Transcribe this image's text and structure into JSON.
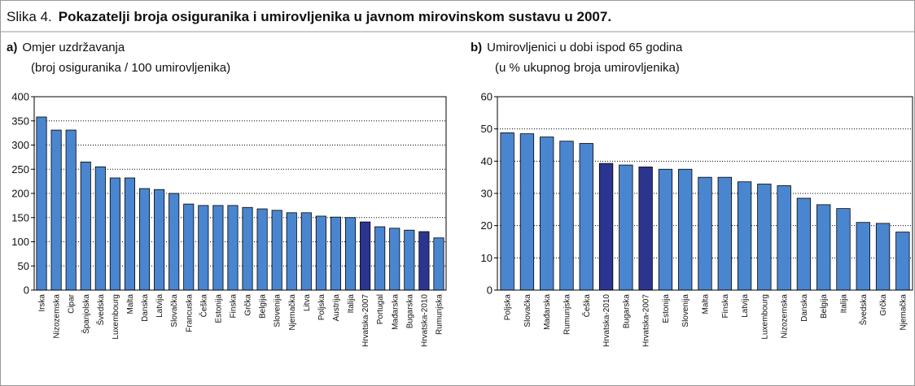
{
  "figure": {
    "label": "Slika 4.",
    "title": "Pokazatelji broja osiguranika i umirovljenika u javnom mirovinskom sustavu u 2007."
  },
  "chart_data": [
    {
      "type": "bar",
      "label": "a)",
      "title": "Omjer uzdržavanja",
      "subtitle": "(broj osiguranika / 100 umirovljenika)",
      "categories": [
        "Irska",
        "Nizozemska",
        "Cipar",
        "Španjolska",
        "Švedska",
        "Luxembourg",
        "Malta",
        "Danska",
        "Latvija",
        "Slovačka",
        "Francuska",
        "Češka",
        "Estonija",
        "Finska",
        "Grčka",
        "Belgija",
        "Slovenija",
        "Njemačka",
        "Litva",
        "Poljska",
        "Austrija",
        "Italija",
        "Hrvatska-2007",
        "Portugal",
        "Mađarska",
        "Bugarska",
        "Hrvatska-2010",
        "Rumunjska"
      ],
      "values": [
        358,
        331,
        331,
        265,
        255,
        232,
        232,
        210,
        208,
        200,
        178,
        175,
        175,
        175,
        171,
        168,
        165,
        160,
        160,
        153,
        151,
        150,
        141,
        131,
        128,
        124,
        121,
        108
      ],
      "colors": [
        "#4a86d0",
        "#4a86d0",
        "#4a86d0",
        "#4a86d0",
        "#4a86d0",
        "#4a86d0",
        "#4a86d0",
        "#4a86d0",
        "#4a86d0",
        "#4a86d0",
        "#4a86d0",
        "#4a86d0",
        "#4a86d0",
        "#4a86d0",
        "#4a86d0",
        "#4a86d0",
        "#4a86d0",
        "#4a86d0",
        "#4a86d0",
        "#4a86d0",
        "#4a86d0",
        "#4a86d0",
        "#2b3590",
        "#4a86d0",
        "#4a86d0",
        "#4a86d0",
        "#2b3590",
        "#4a86d0"
      ],
      "ylim": [
        0,
        400
      ],
      "yticks": [
        0,
        50,
        100,
        150,
        200,
        250,
        300,
        350,
        400
      ],
      "grid": true
    },
    {
      "type": "bar",
      "label": "b)",
      "title": "Umirovljenici u dobi ispod 65 godina",
      "subtitle": "(u % ukupnog broja umirovljenika)",
      "categories": [
        "Poljska",
        "Slovačka",
        "Mađarska",
        "Rumunjska",
        "Češka",
        "Hrvatska-2010",
        "Bugarska",
        "Hrvatska-2007",
        "Estonija",
        "Slovenija",
        "Malta",
        "Finska",
        "Latvija",
        "Luxembourg",
        "Nizozemska",
        "Danska",
        "Belgija",
        "Italija",
        "Švedska",
        "Grčka",
        "Njemačka"
      ],
      "values": [
        48.8,
        48.5,
        47.5,
        46.2,
        45.5,
        39.3,
        38.8,
        38.2,
        37.5,
        37.5,
        35,
        35,
        33.6,
        32.9,
        32.4,
        28.5,
        26.5,
        25.3,
        21,
        20.7,
        18
      ],
      "colors": [
        "#4a86d0",
        "#4a86d0",
        "#4a86d0",
        "#4a86d0",
        "#4a86d0",
        "#2b3590",
        "#4a86d0",
        "#2b3590",
        "#4a86d0",
        "#4a86d0",
        "#4a86d0",
        "#4a86d0",
        "#4a86d0",
        "#4a86d0",
        "#4a86d0",
        "#4a86d0",
        "#4a86d0",
        "#4a86d0",
        "#4a86d0",
        "#4a86d0",
        "#4a86d0"
      ],
      "ylim": [
        0,
        60
      ],
      "yticks": [
        0,
        10,
        20,
        30,
        40,
        50,
        60
      ],
      "grid": true
    }
  ]
}
